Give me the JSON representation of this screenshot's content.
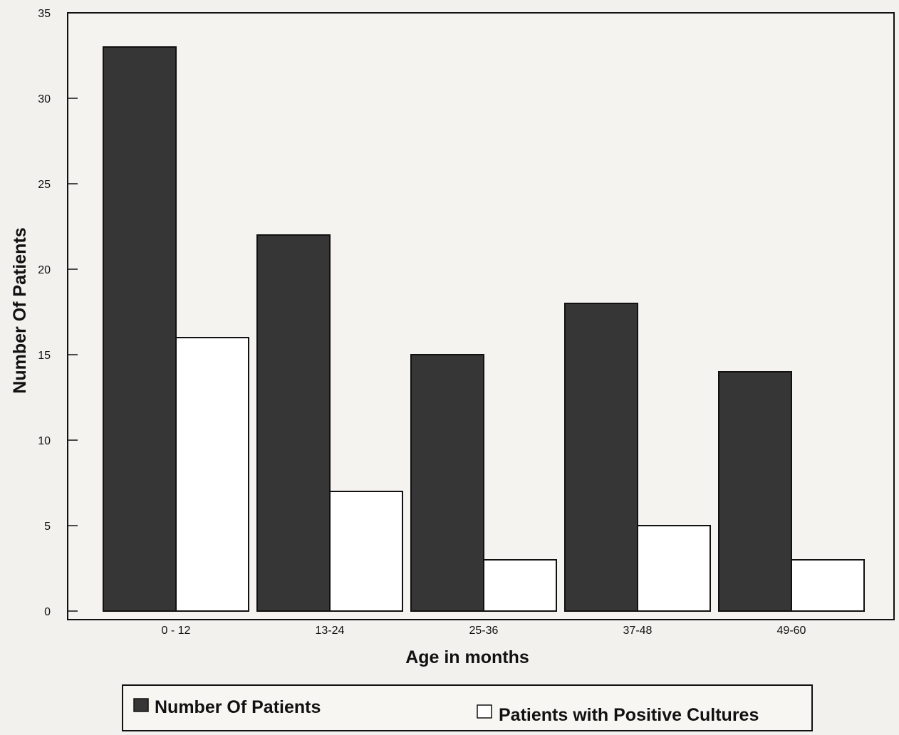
{
  "chart_data": {
    "type": "bar",
    "title": "",
    "xlabel": "Age in months",
    "ylabel": "Number Of Patients",
    "categories": [
      "0 - 12",
      "13-24",
      "25-36",
      "37-48",
      "49-60"
    ],
    "series": [
      {
        "name": "Number Of Patients",
        "values": [
          33,
          22,
          15,
          18,
          14
        ],
        "fill": "dark-hatched"
      },
      {
        "name": "Patients with Positive Cultures",
        "values": [
          16,
          7,
          3,
          5,
          3
        ],
        "fill": "white"
      }
    ],
    "ylim": [
      0,
      35
    ],
    "yticks": [
      0,
      5,
      10,
      15,
      20,
      25,
      30,
      35
    ],
    "grid": false,
    "legend_position": "bottom"
  },
  "colors": {
    "series_dark": "#3a3a3a",
    "series_light": "#ffffff",
    "axis": "#111111",
    "background": "#f2f1ee"
  }
}
